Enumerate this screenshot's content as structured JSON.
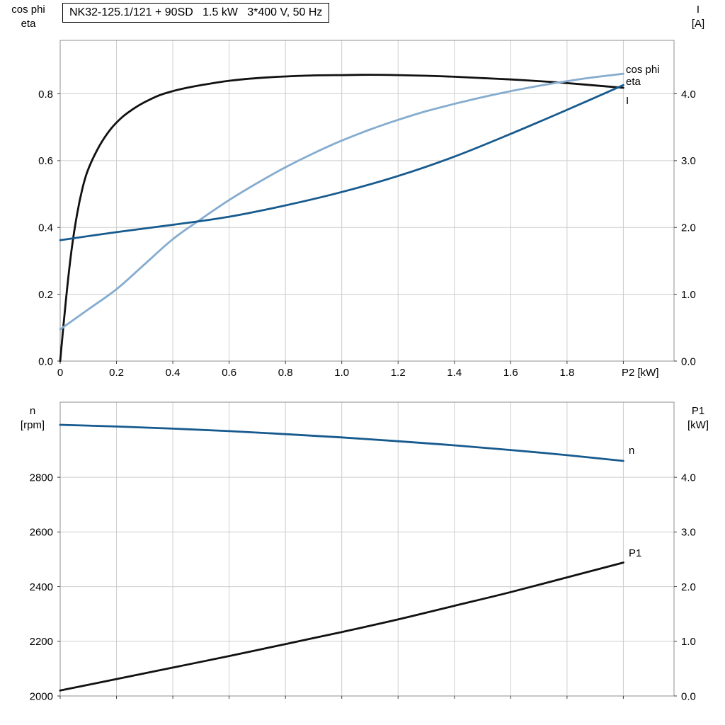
{
  "title_box": {
    "text": "NK32-125.1/121 + 90SD   1.5 kW   3*400 V, 50 Hz"
  },
  "colors": {
    "black": "#111111",
    "dark_blue": "#175a8e",
    "light_blue": "#85accf",
    "grid": "#cdcdcd",
    "frame": "#8f8f8f",
    "tick": "#404040",
    "text": "#000000"
  },
  "chart_data": [
    {
      "type": "line",
      "name": "motor-electrical-chart",
      "title": "NK32-125.1/121 + 90SD   1.5 kW   3*400 V, 50 Hz",
      "x": {
        "label": "P2 [kW]",
        "min": 0,
        "max": 2.18,
        "tick_values": [
          0,
          0.2,
          0.4,
          0.6,
          0.8,
          1.0,
          1.2,
          1.4,
          1.6,
          1.8,
          2.0
        ],
        "tick_labels": [
          "0",
          "0.2",
          "0.4",
          "0.6",
          "0.8",
          "1.0",
          "1.2",
          "1.4",
          "1.6",
          "1.8",
          ""
        ]
      },
      "left_axis": {
        "label_lines": [
          "cos phi",
          "eta"
        ],
        "min": 0,
        "max": 0.96,
        "tick_values": [
          0.0,
          0.2,
          0.4,
          0.6,
          0.8
        ],
        "tick_labels": [
          "0.0",
          "0.2",
          "0.4",
          "0.6",
          "0.8"
        ]
      },
      "right_axis": {
        "label_lines": [
          "I",
          "[A]"
        ],
        "min": 0,
        "max": 4.8,
        "tick_values": [
          0.0,
          1.0,
          2.0,
          3.0,
          4.0
        ],
        "tick_labels": [
          "0.0",
          "1.0",
          "2.0",
          "3.0",
          "4.0"
        ]
      },
      "grid": true,
      "series": [
        {
          "name": "eta",
          "label": "eta",
          "axis": "left",
          "color_key": "black",
          "points": [
            [
              0,
              0
            ],
            [
              0.02,
              0.18
            ],
            [
              0.04,
              0.33
            ],
            [
              0.06,
              0.44
            ],
            [
              0.08,
              0.52
            ],
            [
              0.1,
              0.575
            ],
            [
              0.14,
              0.645
            ],
            [
              0.18,
              0.695
            ],
            [
              0.22,
              0.73
            ],
            [
              0.26,
              0.755
            ],
            [
              0.3,
              0.775
            ],
            [
              0.35,
              0.795
            ],
            [
              0.4,
              0.808
            ],
            [
              0.45,
              0.818
            ],
            [
              0.5,
              0.826
            ],
            [
              0.6,
              0.839
            ],
            [
              0.7,
              0.847
            ],
            [
              0.8,
              0.852
            ],
            [
              0.9,
              0.855
            ],
            [
              1.0,
              0.856
            ],
            [
              1.1,
              0.857
            ],
            [
              1.2,
              0.856
            ],
            [
              1.3,
              0.854
            ],
            [
              1.4,
              0.851
            ],
            [
              1.5,
              0.847
            ],
            [
              1.6,
              0.843
            ],
            [
              1.7,
              0.838
            ],
            [
              1.8,
              0.832
            ],
            [
              1.9,
              0.825
            ],
            [
              2.0,
              0.818
            ]
          ]
        },
        {
          "name": "cos-phi",
          "label": "cos phi",
          "axis": "left",
          "color_key": "light_blue",
          "points": [
            [
              0,
              0.095
            ],
            [
              0.1,
              0.155
            ],
            [
              0.2,
              0.215
            ],
            [
              0.3,
              0.29
            ],
            [
              0.4,
              0.365
            ],
            [
              0.5,
              0.425
            ],
            [
              0.6,
              0.482
            ],
            [
              0.7,
              0.533
            ],
            [
              0.8,
              0.58
            ],
            [
              0.9,
              0.622
            ],
            [
              1.0,
              0.66
            ],
            [
              1.1,
              0.693
            ],
            [
              1.2,
              0.722
            ],
            [
              1.3,
              0.748
            ],
            [
              1.4,
              0.77
            ],
            [
              1.5,
              0.79
            ],
            [
              1.6,
              0.808
            ],
            [
              1.7,
              0.824
            ],
            [
              1.8,
              0.838
            ],
            [
              1.9,
              0.85
            ],
            [
              2.0,
              0.86
            ]
          ]
        },
        {
          "name": "current",
          "label": "I",
          "axis": "right",
          "color_key": "dark_blue",
          "points": [
            [
              0,
              1.81
            ],
            [
              0.2,
              1.93
            ],
            [
              0.4,
              2.04
            ],
            [
              0.6,
              2.16
            ],
            [
              0.8,
              2.33
            ],
            [
              1.0,
              2.53
            ],
            [
              1.2,
              2.77
            ],
            [
              1.4,
              3.06
            ],
            [
              1.6,
              3.4
            ],
            [
              1.8,
              3.76
            ],
            [
              2.0,
              4.13
            ]
          ]
        }
      ]
    },
    {
      "type": "line",
      "name": "speed-power-chart",
      "title": "",
      "x": {
        "label": "",
        "min": 0,
        "max": 2.18,
        "tick_values": [
          0,
          0.2,
          0.4,
          0.6,
          0.8,
          1.0,
          1.2,
          1.4,
          1.6,
          1.8,
          2.0
        ],
        "tick_labels": []
      },
      "left_axis": {
        "label_lines": [
          "n",
          "[rpm]"
        ],
        "min": 2000,
        "max": 3075,
        "tick_values": [
          2000,
          2200,
          2400,
          2600,
          2800
        ],
        "tick_labels": [
          "2000",
          "2200",
          "2400",
          "2600",
          "2800"
        ]
      },
      "right_axis": {
        "label_lines": [
          "P1",
          "[kW]"
        ],
        "min": 0,
        "max": 5.375,
        "tick_values": [
          0.0,
          1.0,
          2.0,
          3.0,
          4.0
        ],
        "tick_labels": [
          "0.0",
          "1.0",
          "2.0",
          "3.0",
          "4.0"
        ]
      },
      "grid": true,
      "series": [
        {
          "name": "speed",
          "label": "n",
          "axis": "left",
          "color_key": "dark_blue",
          "points": [
            [
              0,
              2992
            ],
            [
              0.2,
              2986
            ],
            [
              0.4,
              2978
            ],
            [
              0.6,
              2969
            ],
            [
              0.8,
              2958
            ],
            [
              1.0,
              2946
            ],
            [
              1.2,
              2932
            ],
            [
              1.4,
              2917
            ],
            [
              1.6,
              2900
            ],
            [
              1.8,
              2881
            ],
            [
              2.0,
              2860
            ]
          ]
        },
        {
          "name": "input-power",
          "label": "P1",
          "axis": "right",
          "color_key": "black",
          "points": [
            [
              0,
              0.1
            ],
            [
              0.2,
              0.31
            ],
            [
              0.4,
              0.52
            ],
            [
              0.6,
              0.73
            ],
            [
              0.8,
              0.95
            ],
            [
              1.0,
              1.17
            ],
            [
              1.2,
              1.4
            ],
            [
              1.4,
              1.65
            ],
            [
              1.6,
              1.9
            ],
            [
              1.8,
              2.17
            ],
            [
              2.0,
              2.44
            ]
          ]
        }
      ]
    }
  ]
}
